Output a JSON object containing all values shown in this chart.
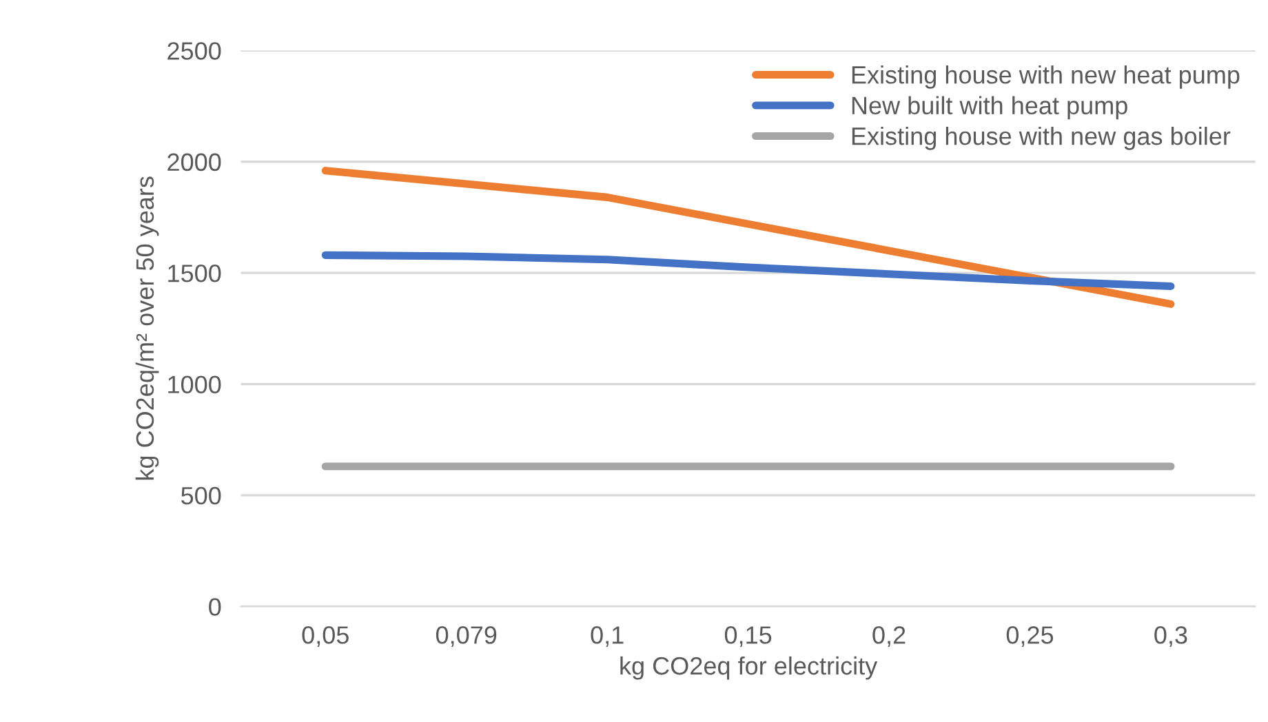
{
  "chart_data": {
    "type": "line",
    "xlabel": "kg CO2eq for electricity",
    "ylabel": "kg CO2eq/m² over 50 years",
    "categories": [
      "0,05",
      "0,079",
      "0,1",
      "0,15",
      "0,2",
      "0,25",
      "0,3"
    ],
    "series": [
      {
        "name": "Existing house with new heat pump",
        "color": "#ed7d31",
        "values": [
          1960,
          1900,
          1840,
          1720,
          1600,
          1480,
          1360
        ]
      },
      {
        "name": "New built with heat pump",
        "color": "#4472c4",
        "values": [
          1580,
          1575,
          1560,
          1525,
          1495,
          1465,
          1440
        ]
      },
      {
        "name": "Existing house with new gas boiler",
        "color": "#a5a5a5",
        "values": [
          630,
          630,
          630,
          630,
          630,
          630,
          630
        ]
      }
    ],
    "ylim": [
      0,
      2500
    ],
    "yticks": [
      0,
      500,
      1000,
      1500,
      2000,
      2500
    ],
    "grid": "y",
    "legend": "top right",
    "marker": "none",
    "line_style": "solid"
  }
}
